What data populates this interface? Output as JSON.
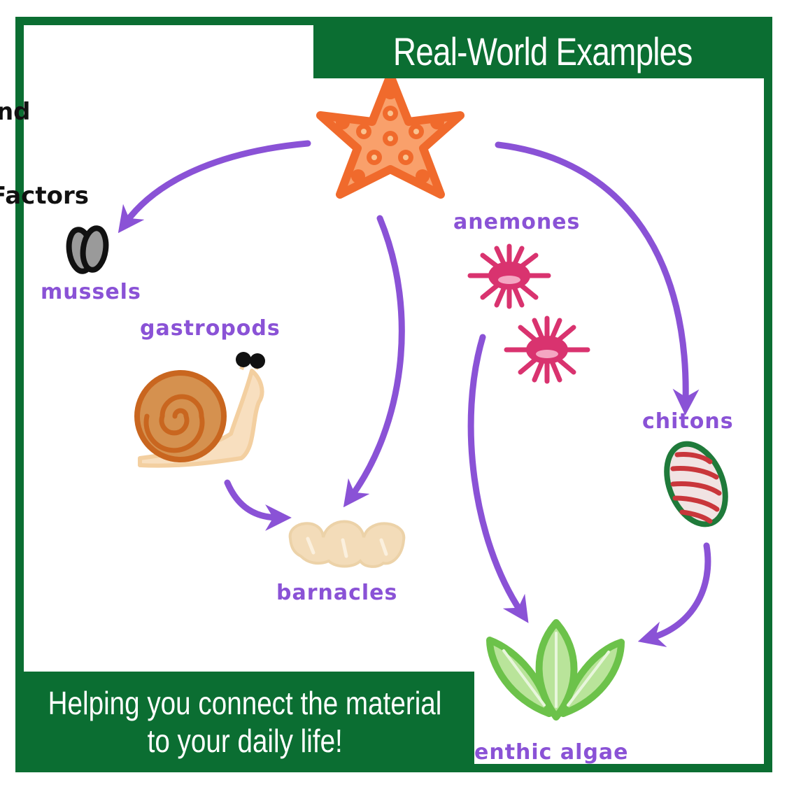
{
  "title": "Real-World Examples",
  "caption": {
    "line1": "Helping you connect the material",
    "line2": "to your daily life!"
  },
  "side_text": {
    "top": "and",
    "bottom": "Factors"
  },
  "nodes": {
    "sea_star": {
      "label": "",
      "icon": "sea-star-icon"
    },
    "mussels": {
      "label": "mussels",
      "icon": "mussels-icon"
    },
    "gastropods": {
      "label": "gastropods",
      "icon": "snail-icon"
    },
    "anemones": {
      "label": "anemones",
      "icon": "anemone-icon"
    },
    "barnacles": {
      "label": "barnacles",
      "icon": "barnacles-icon"
    },
    "chitons": {
      "label": "chitons",
      "icon": "chiton-icon"
    },
    "benthic_algae": {
      "label": "enthic algae",
      "icon": "algae-icon"
    }
  },
  "colors": {
    "banner": "#0b6e32",
    "arrow": "#8a52d6",
    "sea_star": "#f4834f",
    "anemone": "#d9336f",
    "algae": "#6cc24a",
    "snail_shell": "#d5813f",
    "barnacle": "#f3dcb9"
  }
}
